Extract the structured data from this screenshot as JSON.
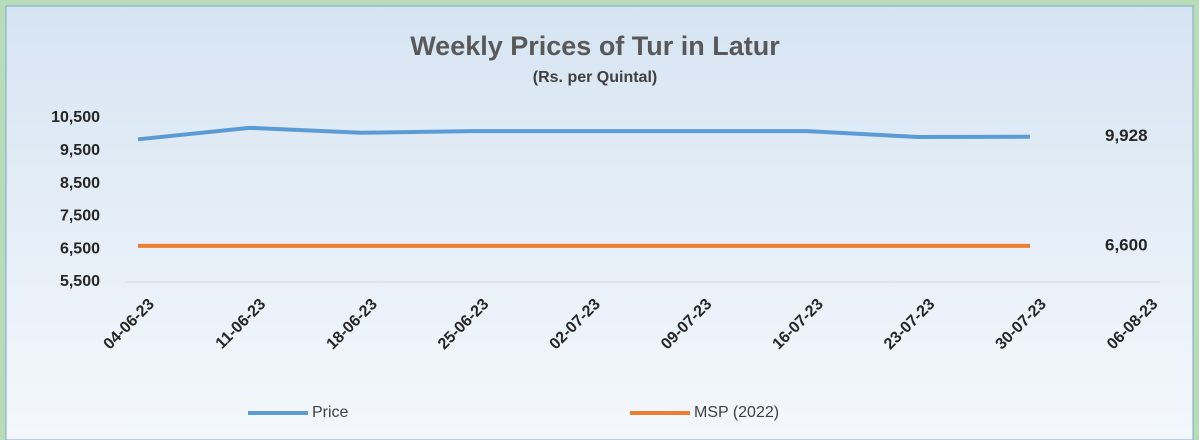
{
  "chart_data": {
    "type": "line",
    "title": "Weekly Prices of Tur in Latur",
    "subtitle": "(Rs. per Quintal)",
    "categories": [
      "04-06-23",
      "11-06-23",
      "18-06-23",
      "25-06-23",
      "02-07-23",
      "09-07-23",
      "16-07-23",
      "23-07-23",
      "30-07-23",
      "06-08-23"
    ],
    "series": [
      {
        "name": "Price",
        "color": "#5b9bd5",
        "values": [
          9850,
          10200,
          10050,
          10100,
          10100,
          10100,
          10100,
          9920,
          9928,
          null
        ],
        "value_labels": [
          null,
          null,
          null,
          null,
          null,
          null,
          null,
          null,
          "9,928",
          null
        ]
      },
      {
        "name": "MSP (2022)",
        "color": "#ed7d31",
        "values": [
          6600,
          6600,
          6600,
          6600,
          6600,
          6600,
          6600,
          6600,
          6600,
          null
        ],
        "value_labels": [
          null,
          null,
          null,
          null,
          null,
          null,
          null,
          null,
          "6,600",
          null
        ]
      }
    ],
    "ylim": [
      5500,
      10500
    ],
    "yticks": [
      {
        "value": 5500,
        "label": "5,500"
      },
      {
        "value": 6500,
        "label": "6,500"
      },
      {
        "value": 7500,
        "label": "7,500"
      },
      {
        "value": 8500,
        "label": "8,500"
      },
      {
        "value": 9500,
        "label": "9,500"
      },
      {
        "value": 10500,
        "label": "10,500"
      }
    ],
    "grid": false,
    "legend": "bottom"
  }
}
